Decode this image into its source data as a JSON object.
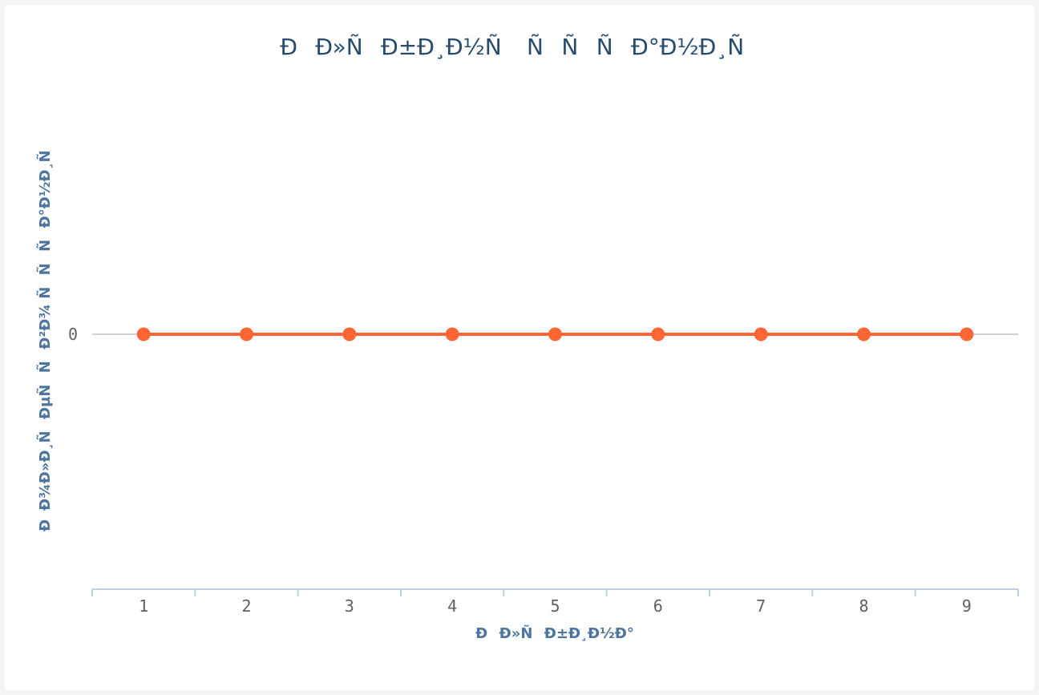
{
  "chart_data": {
    "type": "line",
    "title": "ÐÐ»ÑÐ±Ð¸Ð½Ñ ÑÑÑÐ°Ð½Ð¸Ñ",
    "xlabel": "ÐÐ»ÑÐ±Ð¸Ð½Ð°",
    "ylabel": "ÐÐ¾Ð»Ð¸ÑÐµÑÑÐ²Ð¾ ÑÑÑÐ°Ð½Ð¸Ñ",
    "categories": [
      "1",
      "2",
      "3",
      "4",
      "5",
      "6",
      "7",
      "8",
      "9"
    ],
    "series": [
      {
        "values": [
          0,
          0,
          0,
          0,
          0,
          0,
          0,
          0,
          0
        ],
        "color": "#ff6633"
      }
    ],
    "yticks": [
      "0"
    ],
    "grid": true,
    "legend": "none",
    "axis_color": "#c0d0e0",
    "grid_color": "#c0c0c0"
  }
}
